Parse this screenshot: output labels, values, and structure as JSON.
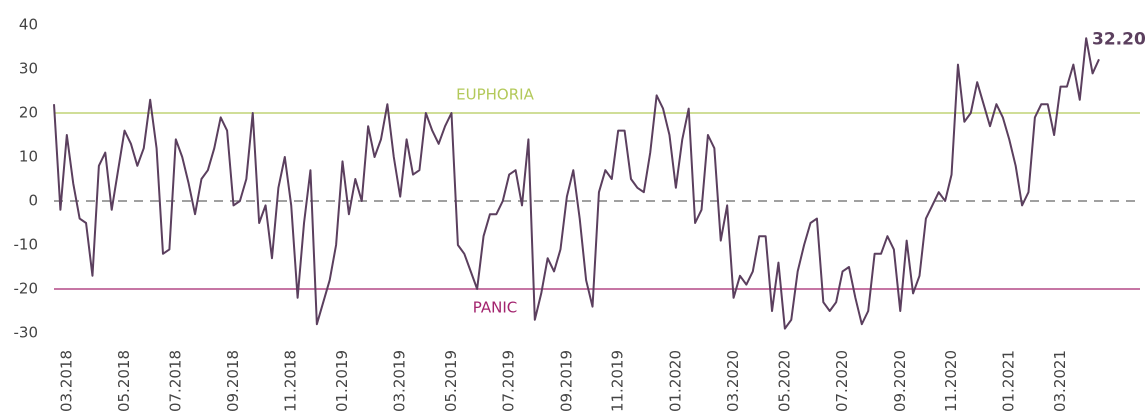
{
  "chart_data": {
    "type": "line",
    "categories": [
      null,
      null,
      "03.2018",
      null,
      null,
      null,
      null,
      null,
      null,
      null,
      null,
      "05.2018",
      null,
      null,
      null,
      null,
      null,
      null,
      null,
      "07.2018",
      null,
      null,
      null,
      null,
      null,
      null,
      null,
      null,
      "09.2018",
      null,
      null,
      null,
      null,
      null,
      null,
      null,
      null,
      "11.2018",
      null,
      null,
      null,
      null,
      null,
      null,
      null,
      "01.2019",
      null,
      null,
      null,
      null,
      null,
      null,
      null,
      null,
      "03.2019",
      null,
      null,
      null,
      null,
      null,
      null,
      null,
      "05.2019",
      null,
      null,
      null,
      null,
      null,
      null,
      null,
      null,
      "07.2019",
      null,
      null,
      null,
      null,
      null,
      null,
      null,
      null,
      "09.2019",
      null,
      null,
      null,
      null,
      null,
      null,
      null,
      "11.2019",
      null,
      null,
      null,
      null,
      null,
      null,
      null,
      null,
      "01.2020",
      null,
      null,
      null,
      null,
      null,
      null,
      null,
      null,
      "03.2020",
      null,
      null,
      null,
      null,
      null,
      null,
      null,
      "05.2020",
      null,
      null,
      null,
      null,
      null,
      null,
      null,
      null,
      "07.2020",
      null,
      null,
      null,
      null,
      null,
      null,
      null,
      null,
      "09.2020",
      null,
      null,
      null,
      null,
      null,
      null,
      null,
      "11.2020",
      null,
      null,
      null,
      null,
      null,
      null,
      null,
      null,
      "01.2021",
      null,
      null,
      null,
      null,
      null,
      null,
      null,
      "03.2021",
      null,
      null,
      null,
      null,
      null,
      null
    ],
    "series": [
      {
        "color": "#5b3f5e",
        "values": [
          22,
          -2,
          15,
          4,
          -4,
          -5,
          -17,
          8,
          11,
          -2,
          7,
          16,
          13,
          8,
          12,
          23,
          12,
          -12,
          -11,
          14,
          10,
          4,
          -3,
          5,
          7,
          12,
          19,
          16,
          -1,
          0,
          5,
          20,
          -5,
          -1,
          -13,
          3,
          10,
          -1,
          -22,
          -5,
          7,
          -28,
          -23,
          -18,
          -10,
          9,
          -3,
          5,
          0,
          17,
          10,
          14,
          22,
          10,
          1,
          14,
          6,
          7,
          20,
          16,
          13,
          17,
          20,
          -10,
          -12,
          -16,
          -20,
          -8,
          -3,
          -3,
          0,
          6,
          7,
          -1,
          14,
          -27,
          -21,
          -13,
          -16,
          -11,
          1,
          7,
          -4,
          -18,
          -24,
          2,
          7,
          5,
          16,
          16,
          5,
          3,
          2,
          11,
          24,
          21,
          15,
          3,
          14,
          21,
          -5,
          -2,
          15,
          12,
          -9,
          -1,
          -22,
          -17,
          -19,
          -16,
          -8,
          -8,
          -25,
          -14,
          -29,
          -27,
          -16,
          -10,
          -5,
          -4,
          -23,
          -25,
          -23,
          -16,
          -15,
          -22,
          -28,
          -25,
          -12,
          -12,
          -8,
          -11,
          -25,
          -9,
          -21,
          -17,
          -4,
          -1,
          2,
          0,
          6,
          31,
          18,
          20,
          27,
          22,
          17,
          22,
          19,
          14,
          8,
          -1,
          2,
          19,
          22,
          22,
          15,
          26,
          26,
          31,
          23,
          37,
          29,
          32.2
        ],
        "value_labels": [
          null,
          null,
          null,
          null,
          null,
          null,
          null,
          null,
          null,
          null,
          null,
          null,
          null,
          null,
          null,
          null,
          null,
          null,
          null,
          null,
          null,
          null,
          null,
          null,
          null,
          null,
          null,
          null,
          null,
          null,
          null,
          null,
          null,
          null,
          null,
          null,
          null,
          null,
          null,
          null,
          null,
          null,
          null,
          null,
          null,
          null,
          null,
          null,
          null,
          null,
          null,
          null,
          null,
          null,
          null,
          null,
          null,
          null,
          null,
          null,
          null,
          null,
          null,
          null,
          null,
          null,
          null,
          null,
          null,
          null,
          null,
          null,
          null,
          null,
          null,
          null,
          null,
          null,
          null,
          null,
          null,
          null,
          null,
          null,
          null,
          null,
          null,
          null,
          null,
          null,
          null,
          null,
          null,
          null,
          null,
          null,
          null,
          null,
          null,
          null,
          null,
          null,
          null,
          null,
          null,
          null,
          null,
          null,
          null,
          null,
          null,
          null,
          null,
          null,
          null,
          null,
          null,
          null,
          null,
          null,
          null,
          null,
          null,
          null,
          null,
          null,
          null,
          null,
          null,
          null,
          null,
          null,
          null,
          null,
          null,
          null,
          null,
          null,
          null,
          null,
          null,
          null,
          null,
          null,
          null,
          null,
          null,
          null,
          null,
          null,
          null,
          null,
          null,
          null,
          null,
          null,
          null,
          null,
          null,
          null,
          null,
          null,
          null,
          "32.20"
        ]
      }
    ],
    "ylim": [
      -30,
      40
    ],
    "yticks": [
      -30,
      -20,
      -10,
      0,
      10,
      20,
      30,
      40
    ],
    "reference_lines": [
      {
        "value": 20,
        "label": "EUPHORIA",
        "color": "#b3c95a"
      },
      {
        "value": -20,
        "label": "PANIC",
        "color": "#a3246e"
      },
      {
        "value": 0,
        "color": "#808080",
        "dashed": true
      }
    ]
  }
}
